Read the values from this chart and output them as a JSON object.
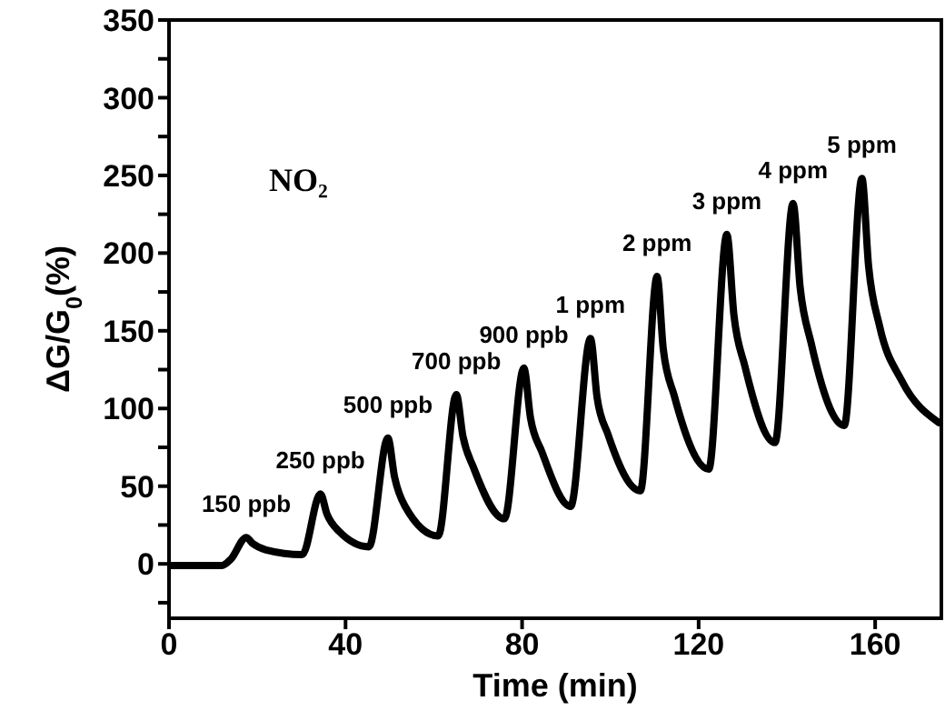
{
  "chart_data": {
    "type": "line",
    "xlabel": "Time (min)",
    "ylabel": "ΔG/G$_{0}$(%)",
    "x": [
      0,
      12,
      14,
      17.5,
      19,
      22,
      30.2,
      34.3,
      35.8,
      38.5,
      45.3,
      49.6,
      51.1,
      53.5,
      61,
      65.1,
      66.6,
      69,
      76,
      80.4,
      81.9,
      84.5,
      91,
      95.5,
      97,
      99.5,
      106.8,
      110.6,
      112,
      114.5,
      122.3,
      126.4,
      128,
      130.5,
      137.3,
      141.4,
      143,
      145.5,
      153,
      157,
      158.5,
      161,
      166,
      174.4
    ],
    "series": [
      {
        "color": "#000000",
        "values": [
          -1,
          -1,
          3,
          17,
          13,
          9,
          6,
          45,
          32,
          21,
          11,
          81,
          56,
          37,
          18,
          109,
          82,
          62,
          29,
          126,
          94,
          72,
          37,
          145,
          107,
          83,
          47,
          185,
          138,
          108,
          61,
          212,
          160,
          127,
          78,
          232,
          178,
          142,
          89,
          248,
          192,
          153,
          118,
          91
        ]
      }
    ],
    "xlim": [
      0,
      175
    ],
    "xticks": [
      0,
      40,
      80,
      120,
      160
    ],
    "ylim": [
      -35,
      350
    ],
    "yticks": [
      {
        "value": -25,
        "label": null
      },
      0,
      {
        "value": 25,
        "label": null
      },
      50,
      {
        "value": 75,
        "label": null
      },
      100,
      {
        "value": 125,
        "label": null
      },
      150,
      {
        "value": 175,
        "label": null
      },
      200,
      {
        "value": 225,
        "label": null
      },
      250,
      {
        "value": 275,
        "label": null
      },
      300,
      {
        "value": 325,
        "label": null
      },
      350
    ],
    "marker": "none",
    "line_style": "solid",
    "annotations": [
      "NO₂",
      {
        "text": "150 ppb",
        "x": 17.5,
        "y": 17
      },
      {
        "text": "250 ppb",
        "x": 34.3,
        "y": 45
      },
      {
        "text": "500 ppb",
        "x": 49.6,
        "y": 81
      },
      {
        "text": "700 ppb",
        "x": 65.1,
        "y": 109
      },
      {
        "text": "900 ppb",
        "x": 80.4,
        "y": 126
      },
      {
        "text": "1 ppm",
        "x": 95.5,
        "y": 145
      },
      {
        "text": "2 ppm",
        "x": 110.6,
        "y": 185
      },
      {
        "text": "3 ppm",
        "x": 126.4,
        "y": 212
      },
      {
        "text": "4 ppm",
        "x": 141.4,
        "y": 232
      },
      {
        "text": "5 ppm",
        "x": 157,
        "y": 248
      }
    ]
  }
}
